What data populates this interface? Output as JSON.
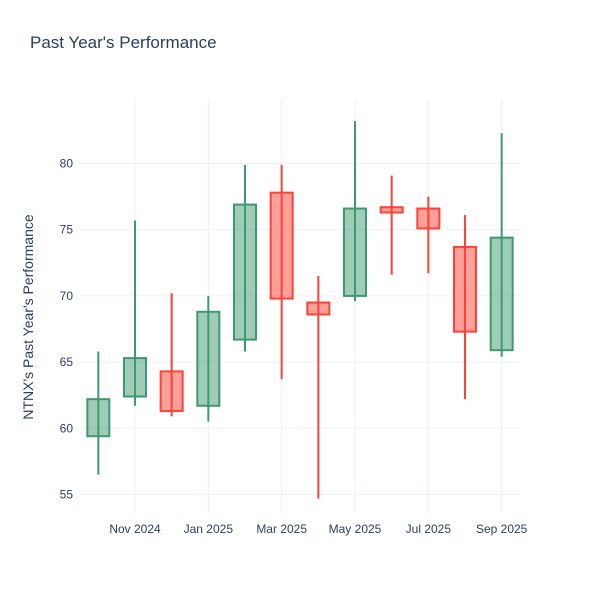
{
  "chart_data": {
    "type": "candlestick",
    "title": "Past Year's Performance",
    "ylabel": "NTNX's Past Year's Performance",
    "xlabel": "",
    "x": [
      "Oct 2024",
      "Nov 2024",
      "Dec 2024",
      "Jan 2025",
      "Feb 2025",
      "Mar 2025",
      "Apr 2025",
      "May 2025",
      "Jun 2025",
      "Jul 2025",
      "Aug 2025",
      "Sep 2025"
    ],
    "open": [
      59.4,
      62.4,
      64.3,
      61.7,
      66.7,
      77.8,
      69.5,
      70.0,
      76.7,
      76.6,
      73.7,
      65.9
    ],
    "high": [
      65.8,
      75.7,
      70.2,
      70.0,
      79.9,
      79.9,
      71.5,
      83.2,
      79.1,
      77.5,
      76.1,
      82.3
    ],
    "low": [
      56.5,
      61.7,
      60.9,
      60.5,
      65.8,
      63.7,
      54.7,
      69.6,
      71.6,
      71.7,
      62.2,
      65.4
    ],
    "close": [
      62.2,
      65.3,
      61.3,
      68.8,
      76.9,
      69.8,
      68.6,
      76.6,
      76.3,
      75.1,
      67.3,
      74.4
    ],
    "xtick_labels": [
      "",
      "Nov 2024",
      "",
      "Jan 2025",
      "",
      "Mar 2025",
      "",
      "May 2025",
      "",
      "Jul 2025",
      "",
      "Sep 2025"
    ],
    "yticks": [
      55,
      60,
      65,
      70,
      75,
      80
    ],
    "ylim": [
      53.6,
      84.8
    ],
    "grid": true,
    "legend": false,
    "colors": {
      "increasing": "#3D9970",
      "decreasing": "#FF4136",
      "grid": "#EBF0F8",
      "text": "#2a3f5f",
      "background": "#ffffff"
    }
  }
}
